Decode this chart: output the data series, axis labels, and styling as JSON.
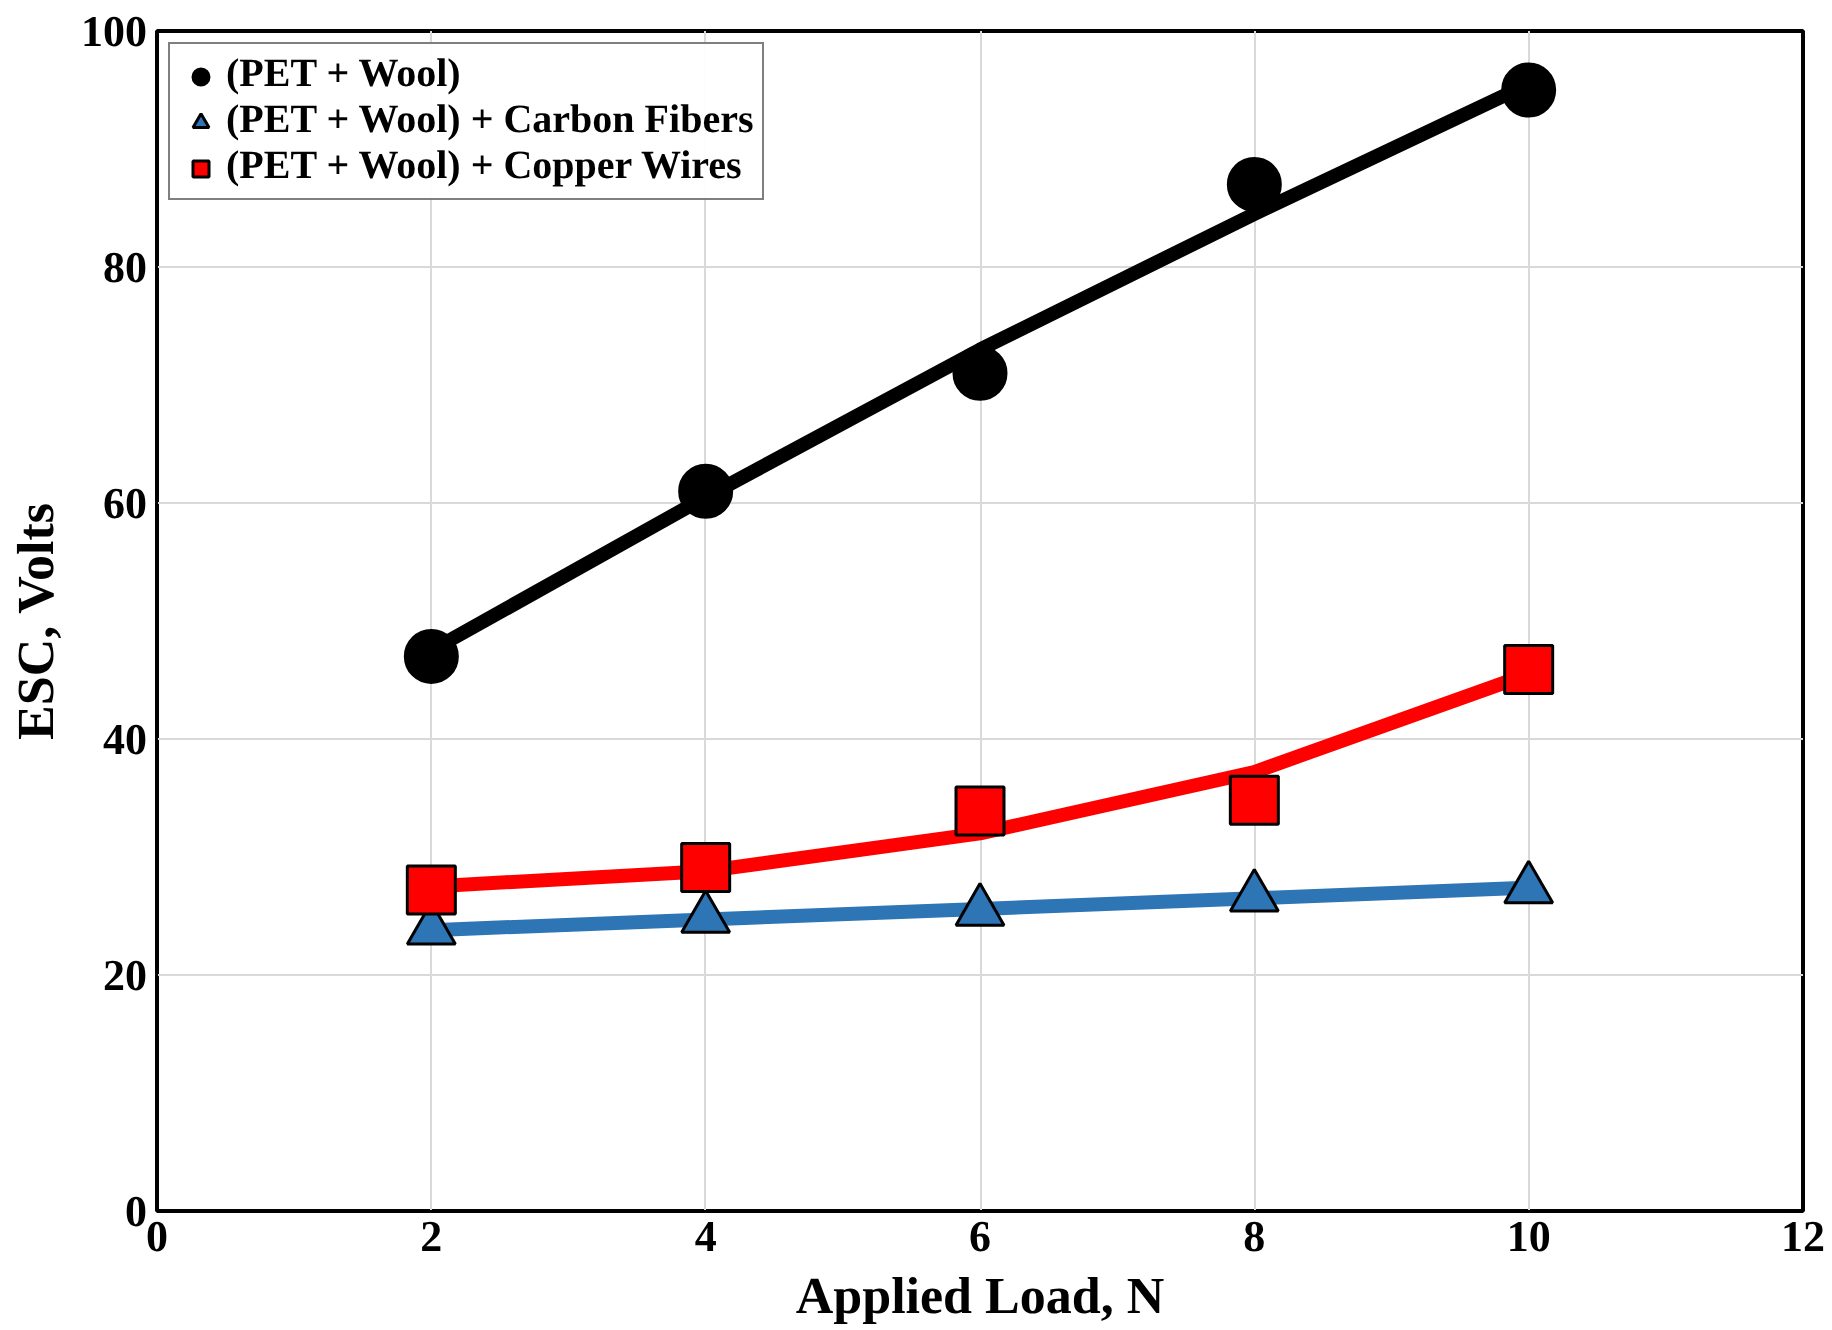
{
  "chart_data": {
    "type": "scatter",
    "xlabel": "Applied Load, N",
    "ylabel": "ESC, Volts",
    "x": [
      2,
      4,
      6,
      8,
      10
    ],
    "xlim": [
      0,
      12
    ],
    "xticks": [
      0,
      2,
      4,
      6,
      8,
      10,
      12
    ],
    "ylim": [
      0,
      100
    ],
    "yticks": [
      0,
      20,
      40,
      60,
      80,
      100
    ],
    "grid": true,
    "legend": "top left",
    "series": [
      {
        "name": "(PET + Wool)",
        "color": "#000000",
        "marker": "circle",
        "values": [
          47,
          61,
          71,
          87,
          95
        ]
      },
      {
        "name": "(PET + Wool) + Carbon Fibers",
        "color": "#2e75b6",
        "marker": "triangle",
        "values": [
          23.8,
          24.8,
          25.4,
          26.6,
          27.3
        ]
      },
      {
        "name": "(PET + Wool) + Copper Wires",
        "color": "#ff0000",
        "marker": "square",
        "values": [
          27.2,
          29.1,
          33.9,
          34.8,
          45.9
        ]
      },
      {
        "type": "line",
        "color": "#000000",
        "x": [
          2,
          4,
          6,
          8,
          10
        ],
        "values": [
          47.5,
          60.5,
          73,
          84.5,
          95.5
        ]
      },
      {
        "type": "line",
        "color": "#2e75b6",
        "x": [
          2,
          4,
          6,
          8,
          10
        ],
        "values": [
          23.8,
          24.7,
          25.6,
          26.5,
          27.4
        ]
      },
      {
        "type": "line",
        "color": "#ff0000",
        "x": [
          2,
          4,
          6,
          8,
          10
        ],
        "values": [
          27.5,
          28.8,
          32,
          37.2,
          45.5
        ]
      }
    ]
  }
}
